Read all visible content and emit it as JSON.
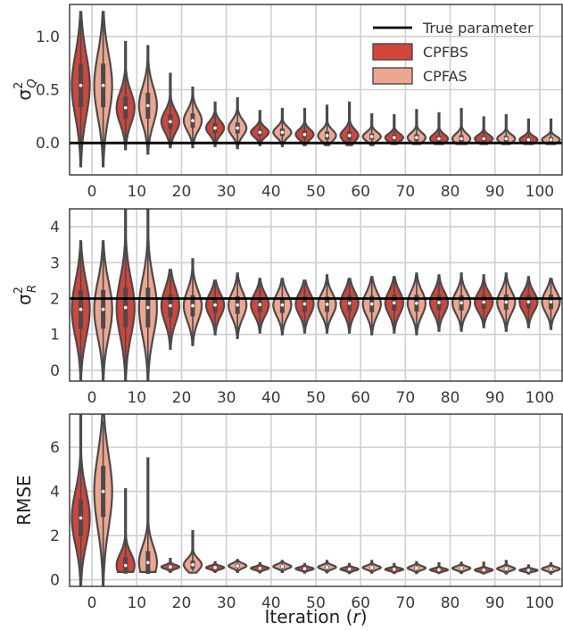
{
  "colors": {
    "cpfbs": "#d1453b",
    "cpfas": "#eda68f",
    "violin_edge": "#4a4a4a",
    "true_line": "#000000",
    "grid": "#cfcfcf",
    "frame": "#333333"
  },
  "chart_data": [
    {
      "type": "violin",
      "ylabel_base": "σ",
      "ylabel_sup": "2",
      "ylabel_sub": "Q",
      "ylim": [
        -0.3,
        1.3
      ],
      "yticks": [
        "0.0",
        "0.5",
        "1.0"
      ],
      "categories": [
        "0",
        "10",
        "20",
        "30",
        "40",
        "50",
        "60",
        "70",
        "80",
        "90",
        "100"
      ],
      "true_value": 0.0,
      "legend": {
        "placement": "top-right",
        "line_label": "True parameter",
        "series_labels": [
          "CPFBS",
          "CPFAS"
        ]
      },
      "series": [
        {
          "name": "CPFBS",
          "medians": [
            0.54,
            0.33,
            0.2,
            0.14,
            0.1,
            0.08,
            0.07,
            0.05,
            0.04,
            0.04,
            0.03
          ],
          "mins": [
            -0.22,
            -0.06,
            -0.04,
            -0.03,
            -0.02,
            -0.02,
            -0.02,
            -0.01,
            -0.01,
            -0.01,
            -0.01
          ],
          "maxs": [
            1.23,
            0.95,
            0.65,
            0.38,
            0.3,
            0.32,
            0.38,
            0.26,
            0.28,
            0.24,
            0.22
          ]
        },
        {
          "name": "CPFAS",
          "medians": [
            0.54,
            0.35,
            0.21,
            0.14,
            0.1,
            0.07,
            0.06,
            0.05,
            0.04,
            0.04,
            0.03
          ],
          "mins": [
            -0.22,
            -0.1,
            -0.04,
            -0.05,
            -0.03,
            -0.02,
            -0.02,
            -0.01,
            -0.01,
            -0.01,
            -0.01
          ],
          "maxs": [
            1.23,
            0.91,
            0.52,
            0.42,
            0.32,
            0.35,
            0.27,
            0.31,
            0.32,
            0.26,
            0.22
          ]
        }
      ]
    },
    {
      "type": "violin",
      "ylabel_base": "σ",
      "ylabel_sup": "2",
      "ylabel_sub": "R",
      "ylim": [
        -0.3,
        4.5
      ],
      "yticks": [
        "0",
        "1",
        "2",
        "3",
        "4"
      ],
      "categories": [
        "0",
        "10",
        "20",
        "30",
        "40",
        "50",
        "60",
        "70",
        "80",
        "90",
        "100"
      ],
      "true_value": 2.0,
      "series": [
        {
          "name": "CPFBS",
          "medians": [
            1.7,
            1.75,
            1.8,
            1.82,
            1.83,
            1.85,
            1.87,
            1.88,
            1.89,
            1.9,
            1.91
          ],
          "mins": [
            -0.3,
            -0.3,
            0.6,
            1.0,
            1.05,
            1.05,
            1.05,
            1.05,
            1.1,
            1.2,
            1.2
          ],
          "maxs": [
            3.6,
            4.5,
            2.8,
            2.5,
            2.55,
            2.5,
            2.55,
            2.6,
            2.65,
            2.65,
            2.6
          ]
        },
        {
          "name": "CPFAS",
          "medians": [
            1.7,
            1.75,
            1.8,
            1.82,
            1.82,
            1.84,
            1.85,
            1.87,
            1.88,
            1.9,
            1.91
          ],
          "mins": [
            -0.3,
            -0.3,
            0.7,
            0.9,
            1.0,
            1.05,
            1.0,
            1.0,
            1.1,
            1.1,
            1.15
          ],
          "maxs": [
            3.6,
            4.5,
            3.1,
            2.7,
            2.55,
            2.65,
            2.6,
            2.7,
            2.7,
            2.7,
            2.55
          ]
        }
      ]
    },
    {
      "type": "violin",
      "ylabel": "RMSE",
      "xlabel_text": "Iteration (",
      "xlabel_var": "r",
      "xlabel_close": ")",
      "ylim": [
        -0.3,
        7.5
      ],
      "yticks": [
        "0",
        "2",
        "4",
        "6"
      ],
      "categories": [
        "0",
        "10",
        "20",
        "30",
        "40",
        "50",
        "60",
        "70",
        "80",
        "90",
        "100"
      ],
      "series": [
        {
          "name": "CPFBS",
          "medians": [
            2.8,
            0.65,
            0.58,
            0.55,
            0.52,
            0.5,
            0.48,
            0.47,
            0.45,
            0.44,
            0.43
          ],
          "mins": [
            -0.3,
            0.35,
            0.35,
            0.35,
            0.33,
            0.32,
            0.3,
            0.3,
            0.3,
            0.28,
            0.28
          ],
          "maxs": [
            7.5,
            4.1,
            0.95,
            0.8,
            0.75,
            0.72,
            0.72,
            0.72,
            0.75,
            0.78,
            0.65
          ]
        },
        {
          "name": "CPFAS",
          "medians": [
            4.0,
            0.78,
            0.68,
            0.63,
            0.6,
            0.57,
            0.55,
            0.53,
            0.52,
            0.5,
            0.49
          ],
          "mins": [
            -0.3,
            0.35,
            0.32,
            0.35,
            0.35,
            0.33,
            0.32,
            0.3,
            0.3,
            0.28,
            0.28
          ],
          "maxs": [
            7.5,
            5.5,
            2.2,
            0.9,
            0.85,
            0.85,
            0.85,
            0.8,
            0.78,
            0.85,
            0.75
          ]
        }
      ]
    }
  ]
}
